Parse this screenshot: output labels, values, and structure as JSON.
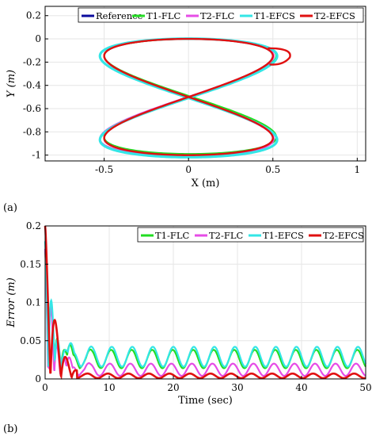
{
  "chart_data": [
    {
      "type": "line",
      "panel_label": "(a)",
      "xlabel": "X (m)",
      "ylabel": "Y (m)",
      "xlim": [
        -0.85,
        1.05
      ],
      "ylim": [
        -1.05,
        0.28
      ],
      "xticks": [
        -0.5,
        0,
        0.5,
        1
      ],
      "yticks": [
        0.2,
        0,
        -0.2,
        -0.4,
        -0.6,
        -0.8,
        -1
      ],
      "grid": true,
      "legend_position": "top-right",
      "curve": "figure-eight: x = 0.5*sin(2t), y = -0.5 + 0.5*cos(t)",
      "series": [
        {
          "name": "Reference",
          "color": "#0b0b9e"
        },
        {
          "name": "T1-FLC",
          "color": "#22dd22"
        },
        {
          "name": "T2-FLC",
          "color": "#e64de6"
        },
        {
          "name": "T1-EFCS",
          "color": "#33e6e6"
        },
        {
          "name": "T2-EFCS",
          "color": "#e01010"
        }
      ]
    },
    {
      "type": "line",
      "panel_label": "(b)",
      "xlabel": "Time (sec)",
      "ylabel": "Error (m)",
      "xlim": [
        0,
        50
      ],
      "ylim": [
        0,
        0.2
      ],
      "xticks": [
        0,
        10,
        20,
        30,
        40,
        50
      ],
      "yticks": [
        0.2,
        0.15,
        0.1,
        0.05,
        0
      ],
      "grid": true,
      "legend_position": "top-right",
      "series": [
        {
          "name": "T1-FLC",
          "color": "#22dd22",
          "steady_mean": 0.026,
          "steady_amp": 0.012,
          "period": 3.2
        },
        {
          "name": "T2-FLC",
          "color": "#e64de6",
          "steady_mean": 0.012,
          "steady_amp": 0.008,
          "period": 3.2
        },
        {
          "name": "T1-EFCS",
          "color": "#33e6e6",
          "steady_mean": 0.029,
          "steady_amp": 0.013,
          "period": 3.2
        },
        {
          "name": "T2-EFCS",
          "color": "#e01010",
          "steady_mean": 0.004,
          "steady_amp": 0.003,
          "period": 3.2
        }
      ]
    }
  ]
}
